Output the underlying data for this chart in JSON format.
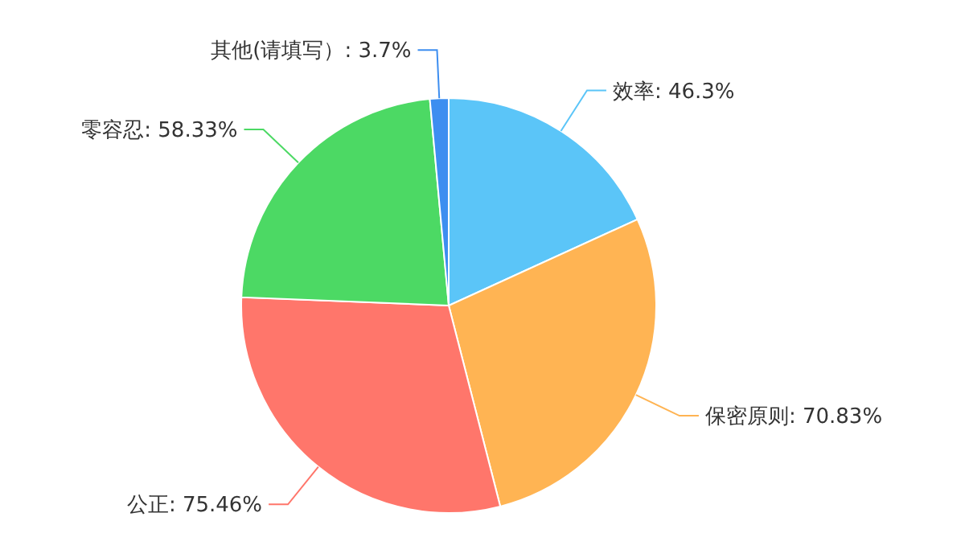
{
  "chart_data": {
    "type": "pie",
    "categories": [
      "效率",
      "保密原则",
      "公正",
      "零容忍",
      "其他(请填写）"
    ],
    "values": [
      46.3,
      70.83,
      75.46,
      58.33,
      3.7
    ],
    "value_labels": [
      "46.3%",
      "70.83%",
      "75.46%",
      "58.33%",
      "3.7%"
    ],
    "colors": [
      "#5bc5f8",
      "#ffb453",
      "#ff766b",
      "#4cd964",
      "#3d8ef0"
    ],
    "legend": false
  }
}
